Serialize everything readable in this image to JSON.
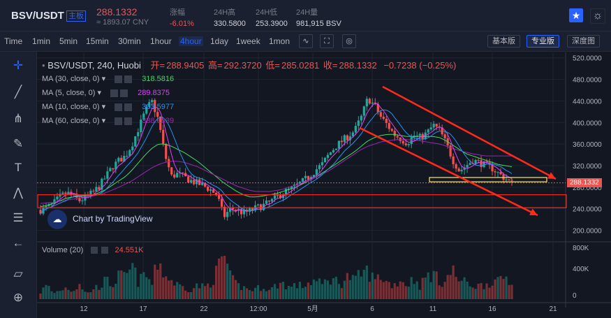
{
  "header": {
    "symbol": "BSV/USDT",
    "tag": "主板",
    "price": "288.1332",
    "cny": "≈ 1893.07 CNY",
    "stats": [
      {
        "key": "涨幅",
        "value": "-6.01%",
        "red": true
      },
      {
        "key": "24H高",
        "value": "330.5800",
        "red": false
      },
      {
        "key": "24H低",
        "value": "253.3900",
        "red": false
      },
      {
        "key": "24H量",
        "value": "981,915 BSV",
        "red": false
      }
    ]
  },
  "toolbar": {
    "timeframes": [
      "Time",
      "1min",
      "5min",
      "15min",
      "30min",
      "1hour",
      "4hour",
      "1day",
      "1week",
      "1mon"
    ],
    "active": "4hour",
    "views": [
      "基本版",
      "专业版",
      "深度图"
    ],
    "active_view": "专业版"
  },
  "legend": {
    "title": "BSV/USDT, 240, Huobi",
    "open_label": "开=",
    "open": "288.9405",
    "high_label": "高=",
    "high": "292.3720",
    "low_label": "低=",
    "low": "285.0281",
    "close_label": "收=",
    "close": "288.1332",
    "change": "−0.7238 (−0.25%)"
  },
  "ma": [
    {
      "label": "MA (30, close, 0)",
      "value": "318.5816",
      "color": "#3fdf5a"
    },
    {
      "label": "MA (5, close, 0)",
      "value": "289.8375",
      "color": "#e040fb"
    },
    {
      "label": "MA (10, close, 0)",
      "value": "303.5977",
      "color": "#2196f3"
    },
    {
      "label": "MA (60, close, 0)",
      "value": "338.1039",
      "color": "#9c27b0"
    }
  ],
  "volume_legend": {
    "label": "Volume (20)",
    "value": "24.551K"
  },
  "watermark": "Chart by TradingView",
  "colors": {
    "up": "#26a69a",
    "down": "#ef5350",
    "annotation": "#ff2a1a",
    "highlight": "#ffe66d"
  },
  "chart_data": {
    "type": "candlestick",
    "price_axis": {
      "ticks": [
        200,
        240,
        280,
        320,
        360,
        400,
        440,
        480,
        520
      ],
      "labels": [
        "200.0000",
        "240.0000",
        "280.0000",
        "320.0000",
        "360.0000",
        "400.0000",
        "440.0000",
        "480.0000",
        "520.0000"
      ],
      "ylim": [
        180,
        530
      ]
    },
    "volume_axis": {
      "ticks": [
        0,
        400,
        800
      ],
      "labels": [
        "0",
        "400K",
        "800K"
      ]
    },
    "x_axis": {
      "labels": [
        "12",
        "17",
        "22",
        "12:00",
        "5月",
        "6",
        "11",
        "16",
        "21"
      ]
    },
    "last_price": 288.1332,
    "close_path": [
      238,
      242,
      250,
      262,
      270,
      263,
      255,
      262,
      270,
      282,
      300,
      318,
      330,
      338,
      360,
      390,
      420,
      440,
      405,
      340,
      300,
      305,
      298,
      292,
      287,
      282,
      275,
      265,
      225,
      240,
      238,
      232,
      236,
      242,
      246,
      252,
      260,
      270,
      275,
      282,
      290,
      300,
      312,
      322,
      340,
      355,
      365,
      375,
      385,
      410,
      445,
      432,
      410,
      395,
      378,
      370,
      362,
      376,
      372,
      380,
      395,
      385,
      360,
      330,
      310,
      320,
      330,
      326,
      320,
      315,
      305,
      296,
      288
    ],
    "ma_paths": {
      "ma30": [
        244,
        246,
        250,
        255,
        260,
        262,
        263,
        264,
        266,
        270,
        276,
        284,
        292,
        300,
        312,
        326,
        340,
        352,
        360,
        360,
        356,
        350,
        344,
        336,
        328,
        318,
        308,
        298,
        288,
        280,
        272,
        266,
        262,
        262,
        264,
        266,
        268,
        272,
        276,
        280,
        286,
        292,
        298,
        306,
        314,
        322,
        330,
        338,
        346,
        356,
        366,
        372,
        376,
        378,
        378,
        376,
        374,
        374,
        374,
        374,
        374,
        372,
        366,
        358,
        350,
        342,
        338,
        334,
        330,
        326,
        322,
        320,
        318
      ],
      "ma60": [
        250,
        251,
        252,
        254,
        256,
        258,
        260,
        262,
        264,
        266,
        270,
        275,
        280,
        286,
        292,
        300,
        308,
        316,
        322,
        326,
        328,
        328,
        326,
        322,
        318,
        312,
        306,
        300,
        294,
        288,
        282,
        278,
        274,
        272,
        272,
        272,
        274,
        276,
        280,
        284,
        288,
        292,
        298,
        304,
        310,
        318,
        326,
        334,
        342,
        350,
        356,
        360,
        364,
        366,
        368,
        368,
        368,
        368,
        366,
        364,
        362,
        360,
        356,
        352,
        348,
        345,
        342,
        340,
        338,
        338,
        338,
        338,
        338
      ]
    },
    "volume_relative": [
      0.15,
      0.3,
      0.12,
      0.2,
      0.25,
      0.18,
      0.35,
      0.1,
      0.22,
      0.28,
      0.4,
      0.3,
      0.5,
      0.45,
      0.7,
      0.35,
      0.55,
      0.3,
      0.85,
      0.5,
      0.4,
      0.3,
      0.25,
      0.2,
      0.3,
      0.25,
      0.35,
      0.6,
      1.0,
      0.45,
      0.3,
      0.25,
      0.2,
      0.22,
      0.28,
      0.18,
      0.3,
      0.35,
      0.25,
      0.3,
      0.28,
      0.35,
      0.4,
      0.3,
      0.45,
      0.4,
      0.35,
      0.5,
      0.38,
      0.55,
      0.6,
      0.4,
      0.5,
      0.35,
      0.3,
      0.42,
      0.3,
      0.45,
      0.28,
      0.5,
      0.55,
      0.35,
      0.45,
      0.6,
      0.4,
      0.35,
      0.3,
      0.28,
      0.32,
      0.4,
      0.35,
      0.5,
      0.3
    ],
    "grid": true
  }
}
